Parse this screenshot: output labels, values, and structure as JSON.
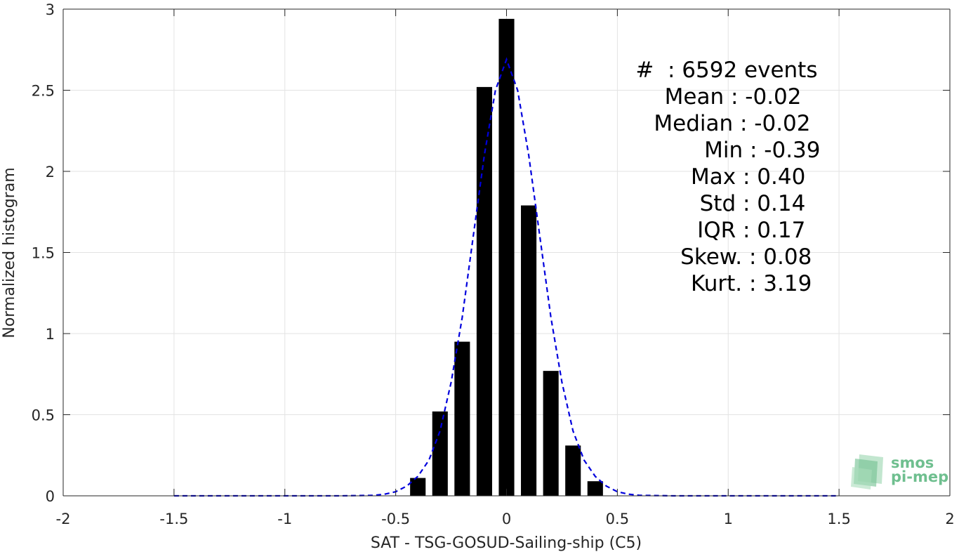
{
  "chart_data": {
    "type": "bar",
    "xlabel": "SAT - TSG-GOSUD-Sailing-ship (C5)",
    "ylabel": "Normalized histogram",
    "xlim": [
      -2,
      2
    ],
    "ylim": [
      0,
      3
    ],
    "grid": true,
    "x_ticks": [
      -2,
      -1.5,
      -1,
      -0.5,
      0,
      0.5,
      1,
      1.5,
      2
    ],
    "x_tick_labels": [
      "-2",
      "-1.5",
      "-1",
      "-0.5",
      "0",
      "0.5",
      "1",
      "1.5",
      "2"
    ],
    "y_ticks": [
      0,
      0.5,
      1,
      1.5,
      2,
      2.5,
      3
    ],
    "y_tick_labels": [
      "0",
      "0.5",
      "1",
      "1.5",
      "2",
      "2.5",
      "3"
    ],
    "bins": [
      {
        "x": -0.4,
        "value": 0.11
      },
      {
        "x": -0.3,
        "value": 0.52
      },
      {
        "x": -0.2,
        "value": 0.95
      },
      {
        "x": -0.1,
        "value": 2.52
      },
      {
        "x": 0.0,
        "value": 2.94
      },
      {
        "x": 0.1,
        "value": 1.79
      },
      {
        "x": 0.2,
        "value": 0.77
      },
      {
        "x": 0.3,
        "value": 0.31
      },
      {
        "x": 0.4,
        "value": 0.09
      }
    ],
    "bar_width": 0.07,
    "bar_color": "#000000",
    "fit_curve": {
      "style": "dashed",
      "color": "#0000dd",
      "x": [
        -1.5,
        -1.25,
        -1.0,
        -0.75,
        -0.6,
        -0.55,
        -0.5,
        -0.45,
        -0.4,
        -0.35,
        -0.3,
        -0.25,
        -0.2,
        -0.15,
        -0.1,
        -0.05,
        0.0,
        0.05,
        0.1,
        0.15,
        0.2,
        0.25,
        0.3,
        0.35,
        0.4,
        0.45,
        0.5,
        0.55,
        0.6,
        0.75,
        1.0,
        1.25,
        1.5
      ],
      "y": [
        0,
        0,
        0,
        0,
        0.003,
        0.01,
        0.025,
        0.06,
        0.12,
        0.22,
        0.4,
        0.7,
        1.1,
        1.6,
        2.1,
        2.5,
        2.69,
        2.5,
        2.1,
        1.6,
        1.1,
        0.7,
        0.4,
        0.22,
        0.12,
        0.06,
        0.025,
        0.01,
        0.003,
        0,
        0,
        0,
        0
      ]
    },
    "annotations": [
      {
        "label": "#  ",
        "value": ": 6592 events"
      },
      {
        "label": "Mean ",
        "value": ": -0.02"
      },
      {
        "label": "Median ",
        "value": ": -0.02"
      },
      {
        "label": "Min ",
        "value": ": -0.39"
      },
      {
        "label": "Max ",
        "value": ": 0.40"
      },
      {
        "label": "Std ",
        "value": ": 0.14"
      },
      {
        "label": "IQR ",
        "value": ": 0.17"
      },
      {
        "label": "Skew. ",
        "value": ": 0.08"
      },
      {
        "label": "Kurt. ",
        "value": ": 3.19"
      }
    ]
  },
  "logo": {
    "line1": "smos",
    "line2": "pi-mep",
    "color": "#6fbf8f"
  }
}
